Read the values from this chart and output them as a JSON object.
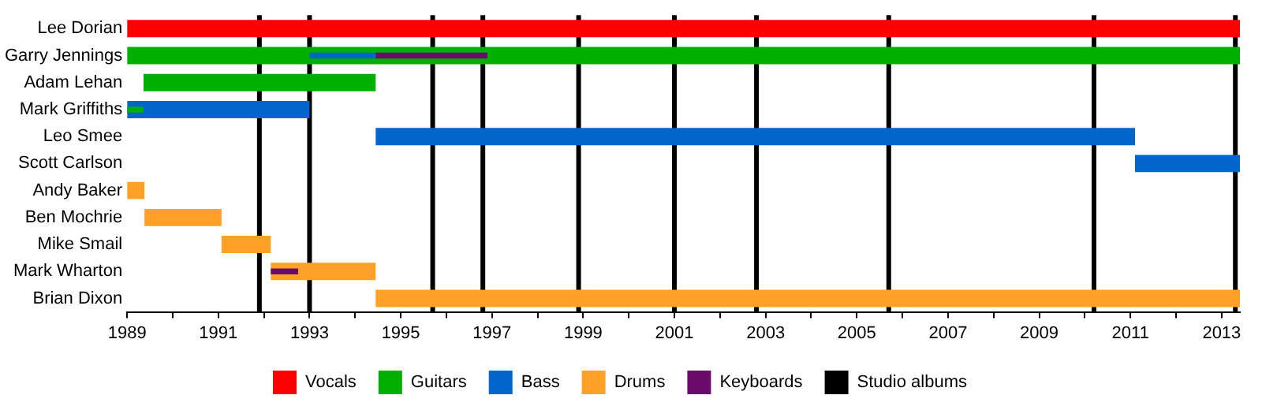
{
  "chart_data": {
    "type": "bar",
    "orientation": "horizontal",
    "categories": [
      "Lee Dorian",
      "Garry Jennings",
      "Adam Lehan",
      "Mark Griffiths",
      "Leo Smee",
      "Scott Carlson",
      "Andy Baker",
      "Ben Mochrie",
      "Mike Smail",
      "Mark Wharton",
      "Brian Dixon"
    ],
    "series": [
      {
        "name": "Vocals",
        "color": "#ff0000",
        "base": [
          1989,
          null,
          null,
          null,
          null,
          null,
          null,
          null,
          null,
          null,
          null
        ],
        "values": [
          24.4,
          null,
          null,
          null,
          null,
          null,
          null,
          null,
          null,
          null,
          null
        ]
      },
      {
        "name": "Guitars",
        "color": "#00b000",
        "base": [
          null,
          1989,
          1989.36,
          1989,
          null,
          null,
          null,
          null,
          null,
          null,
          null
        ],
        "values": [
          null,
          24.4,
          5.09,
          0.36,
          null,
          null,
          null,
          null,
          null,
          null,
          null
        ]
      },
      {
        "name": "Bass",
        "color": "#0066cc",
        "base": [
          null,
          1993,
          null,
          1989,
          1994.45,
          2011.1,
          null,
          null,
          null,
          null,
          null
        ],
        "values": [
          null,
          1.45,
          null,
          4,
          16.65,
          2.3,
          null,
          null,
          null,
          null,
          null
        ]
      },
      {
        "name": "Drums",
        "color": "#ffa127",
        "base": [
          null,
          null,
          null,
          null,
          null,
          null,
          1989,
          1989.38,
          1991.07,
          1992.15,
          1994.45
        ],
        "values": [
          null,
          null,
          null,
          null,
          null,
          null,
          0.38,
          1.69,
          1.08,
          2.3,
          18.95
        ]
      },
      {
        "name": "Keyboards",
        "color": "#6b0a6b",
        "base": [
          null,
          1994.45,
          null,
          null,
          null,
          null,
          null,
          null,
          null,
          1992.15,
          null
        ],
        "values": [
          null,
          2.45,
          null,
          null,
          null,
          null,
          null,
          null,
          null,
          0.6,
          null
        ]
      }
    ],
    "xlim": [
      1989,
      2013.4
    ],
    "xticks": [
      1989,
      {
        "value": 1990,
        "label": null
      },
      1991,
      {
        "value": 1992,
        "label": null
      },
      1993,
      {
        "value": 1994,
        "label": null
      },
      1995,
      {
        "value": 1996,
        "label": null
      },
      1997,
      {
        "value": 1998,
        "label": null
      },
      1999,
      {
        "value": 2000,
        "label": null
      },
      2001,
      {
        "value": 2002,
        "label": null
      },
      2003,
      {
        "value": 2004,
        "label": null
      },
      2005,
      {
        "value": 2006,
        "label": null
      },
      2007,
      {
        "value": 2008,
        "label": null
      },
      2009,
      {
        "value": 2010,
        "label": null
      },
      2011,
      {
        "value": 2012,
        "label": null
      },
      2013
    ],
    "ref_lines": [
      {
        "axis": "x",
        "value": 1991.9,
        "label": "Studio albums",
        "color": "#000000"
      },
      {
        "axis": "x",
        "value": 1993.0,
        "color": "#000000"
      },
      {
        "axis": "x",
        "value": 1995.7,
        "color": "#000000"
      },
      {
        "axis": "x",
        "value": 1996.8,
        "color": "#000000"
      },
      {
        "axis": "x",
        "value": 1998.9,
        "color": "#000000"
      },
      {
        "axis": "x",
        "value": 2001.0,
        "color": "#000000"
      },
      {
        "axis": "x",
        "value": 2002.8,
        "color": "#000000"
      },
      {
        "axis": "x",
        "value": 2005.7,
        "color": "#000000"
      },
      {
        "axis": "x",
        "value": 2010.2,
        "color": "#000000"
      },
      {
        "axis": "x",
        "value": 2013.3,
        "color": "#000000"
      }
    ],
    "legend": "bottom",
    "grid": false
  }
}
